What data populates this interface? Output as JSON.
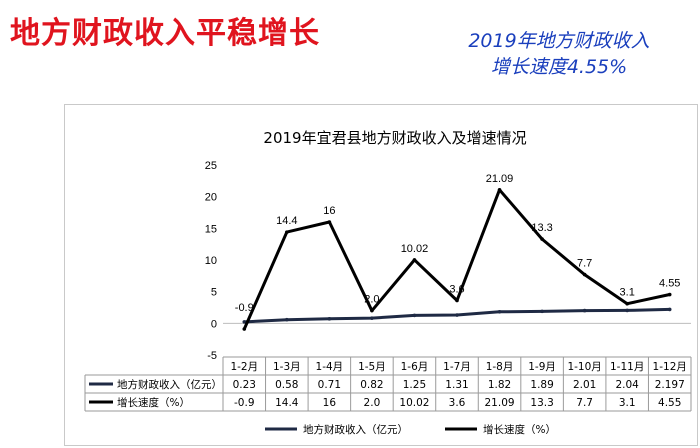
{
  "headline": "地方财政收入平稳增长",
  "rate_box": {
    "line1": "2019年地方财政收入",
    "line2": "增长速度4.55%"
  },
  "chart_data": {
    "type": "line",
    "title": "2019年宜君县地方财政收入及增速情况",
    "categories": [
      "1-2月",
      "1-3月",
      "1-4月",
      "1-5月",
      "1-6月",
      "1-7月",
      "1-8月",
      "1-9月",
      "1-10月",
      "1-11月",
      "1-12月"
    ],
    "y_ticks": [
      "25",
      "20",
      "15",
      "10",
      "5",
      "0",
      "-5"
    ],
    "ylim": [
      -5,
      25
    ],
    "series": [
      {
        "name": "地方财政收入（亿元）",
        "values": [
          0.23,
          0.58,
          0.71,
          0.82,
          1.25,
          1.31,
          1.82,
          1.89,
          2.01,
          2.04,
          2.197
        ],
        "labels": [
          "0.23",
          "0.58",
          "0.71",
          "0.82",
          "1.25",
          "1.31",
          "1.82",
          "1.89",
          "2.01",
          "2.04",
          "2.197"
        ],
        "color": "#1f2a44"
      },
      {
        "name": "增长速度（%）",
        "values": [
          -0.9,
          14.4,
          16,
          2.0,
          10.02,
          3.6,
          21.09,
          13.3,
          7.7,
          3.1,
          4.55
        ],
        "labels": [
          "-0.9",
          "14.4",
          "16",
          "2.0",
          "10.02",
          "3.6",
          "21.09",
          "13.3",
          "7.7",
          "3.1",
          "4.55"
        ],
        "color": "#000000"
      }
    ],
    "data_labels": [
      "-0.9",
      "14.4",
      "16",
      "2.0",
      "10.02",
      "3.6",
      "21.09",
      "13.3",
      "7.7",
      "3.1",
      "4.55"
    ],
    "legend": [
      "地方财政收入（亿元）",
      "增长速度（%）"
    ],
    "legend_position": "bottom",
    "grid": false
  }
}
